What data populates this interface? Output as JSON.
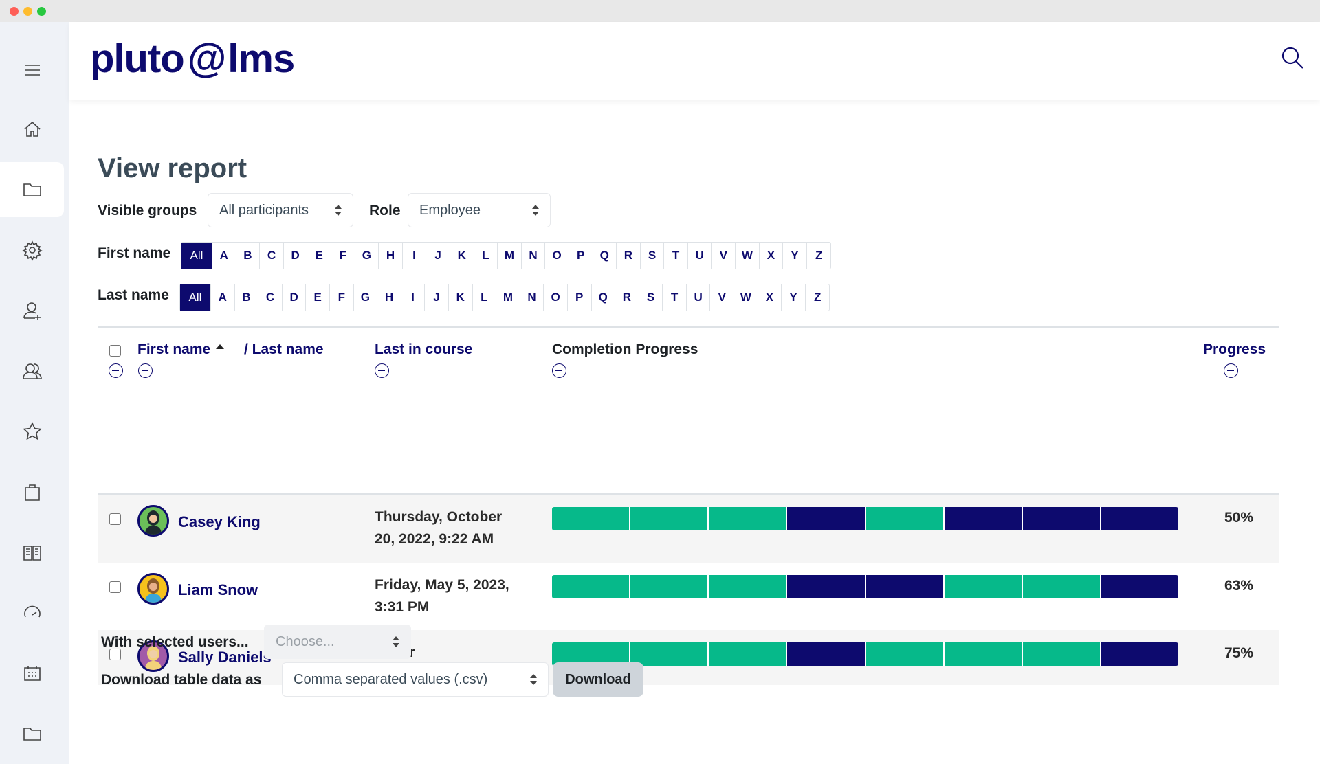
{
  "app": {
    "logo_text": "pluto lms",
    "logo_left": "pluto",
    "logo_right": "lms"
  },
  "sidebar": {
    "items": [
      {
        "icon": "home-icon"
      },
      {
        "icon": "folder-icon",
        "active": true
      },
      {
        "icon": "gear-icon"
      },
      {
        "icon": "add-user-icon"
      },
      {
        "icon": "users-icon"
      },
      {
        "icon": "star-icon"
      },
      {
        "icon": "briefcase-icon"
      },
      {
        "icon": "book-icon"
      },
      {
        "icon": "speedometer-icon"
      },
      {
        "icon": "calendar-icon"
      },
      {
        "icon": "folder-icon"
      }
    ]
  },
  "page": {
    "title": "View report"
  },
  "filters": {
    "groups_label": "Visible groups",
    "groups_value": "All participants",
    "role_label": "Role",
    "role_value": "Employee"
  },
  "initials": {
    "first_label": "First name",
    "last_label": "Last name",
    "letters": [
      "All",
      "A",
      "B",
      "C",
      "D",
      "E",
      "F",
      "G",
      "H",
      "I",
      "J",
      "K",
      "L",
      "M",
      "N",
      "O",
      "P",
      "Q",
      "R",
      "S",
      "T",
      "U",
      "V",
      "W",
      "X",
      "Y",
      "Z"
    ]
  },
  "table": {
    "headers": {
      "first_name": "First name",
      "last_name": "/ Last name",
      "last_in_course": "Last in course",
      "completion": "Completion Progress",
      "progress": "Progress"
    },
    "rows": [
      {
        "name": "Casey King",
        "date_line1": "Thursday, October",
        "date_line2": "20, 2022, 9:22 AM",
        "segments": [
          1,
          1,
          1,
          0,
          1,
          0,
          0,
          0
        ],
        "progress": "50%"
      },
      {
        "name": "Liam Snow",
        "date_line1": "Friday, May 5, 2023,",
        "date_line2": "3:31 PM",
        "segments": [
          1,
          1,
          1,
          0,
          0,
          1,
          1,
          0
        ],
        "progress": "63%"
      },
      {
        "name": "Sally Daniels",
        "date_line1": "Never",
        "date_line2": "",
        "segments": [
          1,
          1,
          1,
          0,
          1,
          1,
          1,
          0
        ],
        "progress": "75%"
      }
    ]
  },
  "bulk": {
    "label": "With selected users...",
    "placeholder": "Choose..."
  },
  "download": {
    "label": "Download table data as",
    "format": "Comma separated values (.csv)",
    "button": "Download"
  },
  "colors": {
    "navy": "#0d0a6e",
    "green": "#06b98a"
  }
}
